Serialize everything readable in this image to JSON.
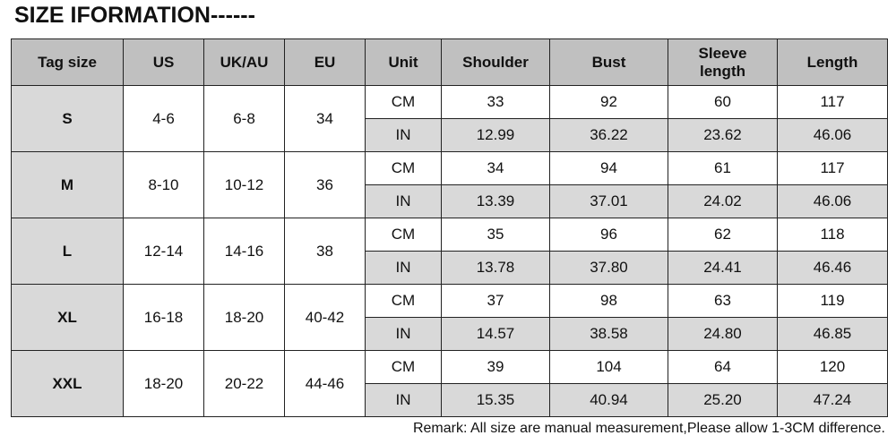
{
  "title": "SIZE IFORMATION------",
  "headers": [
    "Tag size",
    "US",
    "UK/AU",
    "EU",
    "Unit",
    "Shoulder",
    "Bust",
    "Sleeve length",
    "Length"
  ],
  "rows": [
    {
      "tag": "S",
      "us": "4-6",
      "uk": "6-8",
      "eu": "34",
      "cm": [
        "33",
        "92",
        "60",
        "117"
      ],
      "in": [
        "12.99",
        "36.22",
        "23.62",
        "46.06"
      ]
    },
    {
      "tag": "M",
      "us": "8-10",
      "uk": "10-12",
      "eu": "36",
      "cm": [
        "34",
        "94",
        "61",
        "117"
      ],
      "in": [
        "13.39",
        "37.01",
        "24.02",
        "46.06"
      ]
    },
    {
      "tag": "L",
      "us": "12-14",
      "uk": "14-16",
      "eu": "38",
      "cm": [
        "35",
        "96",
        "62",
        "118"
      ],
      "in": [
        "13.78",
        "37.80",
        "24.41",
        "46.46"
      ]
    },
    {
      "tag": "XL",
      "us": "16-18",
      "uk": "18-20",
      "eu": "40-42",
      "cm": [
        "37",
        "98",
        "63",
        "119"
      ],
      "in": [
        "14.57",
        "38.58",
        "24.80",
        "46.85"
      ]
    },
    {
      "tag": "XXL",
      "us": "18-20",
      "uk": "20-22",
      "eu": "44-46",
      "cm": [
        "39",
        "104",
        "64",
        "120"
      ],
      "in": [
        "15.35",
        "40.94",
        "25.20",
        "47.24"
      ]
    }
  ],
  "units": {
    "cm": "CM",
    "in": "IN"
  },
  "remark": "Remark: All size are manual measurement,Please allow 1-3CM difference.",
  "colors": {
    "header_bg": "#c0c0c0",
    "tag_bg": "#d9d9d9",
    "in_row_bg": "#d9d9d9"
  }
}
